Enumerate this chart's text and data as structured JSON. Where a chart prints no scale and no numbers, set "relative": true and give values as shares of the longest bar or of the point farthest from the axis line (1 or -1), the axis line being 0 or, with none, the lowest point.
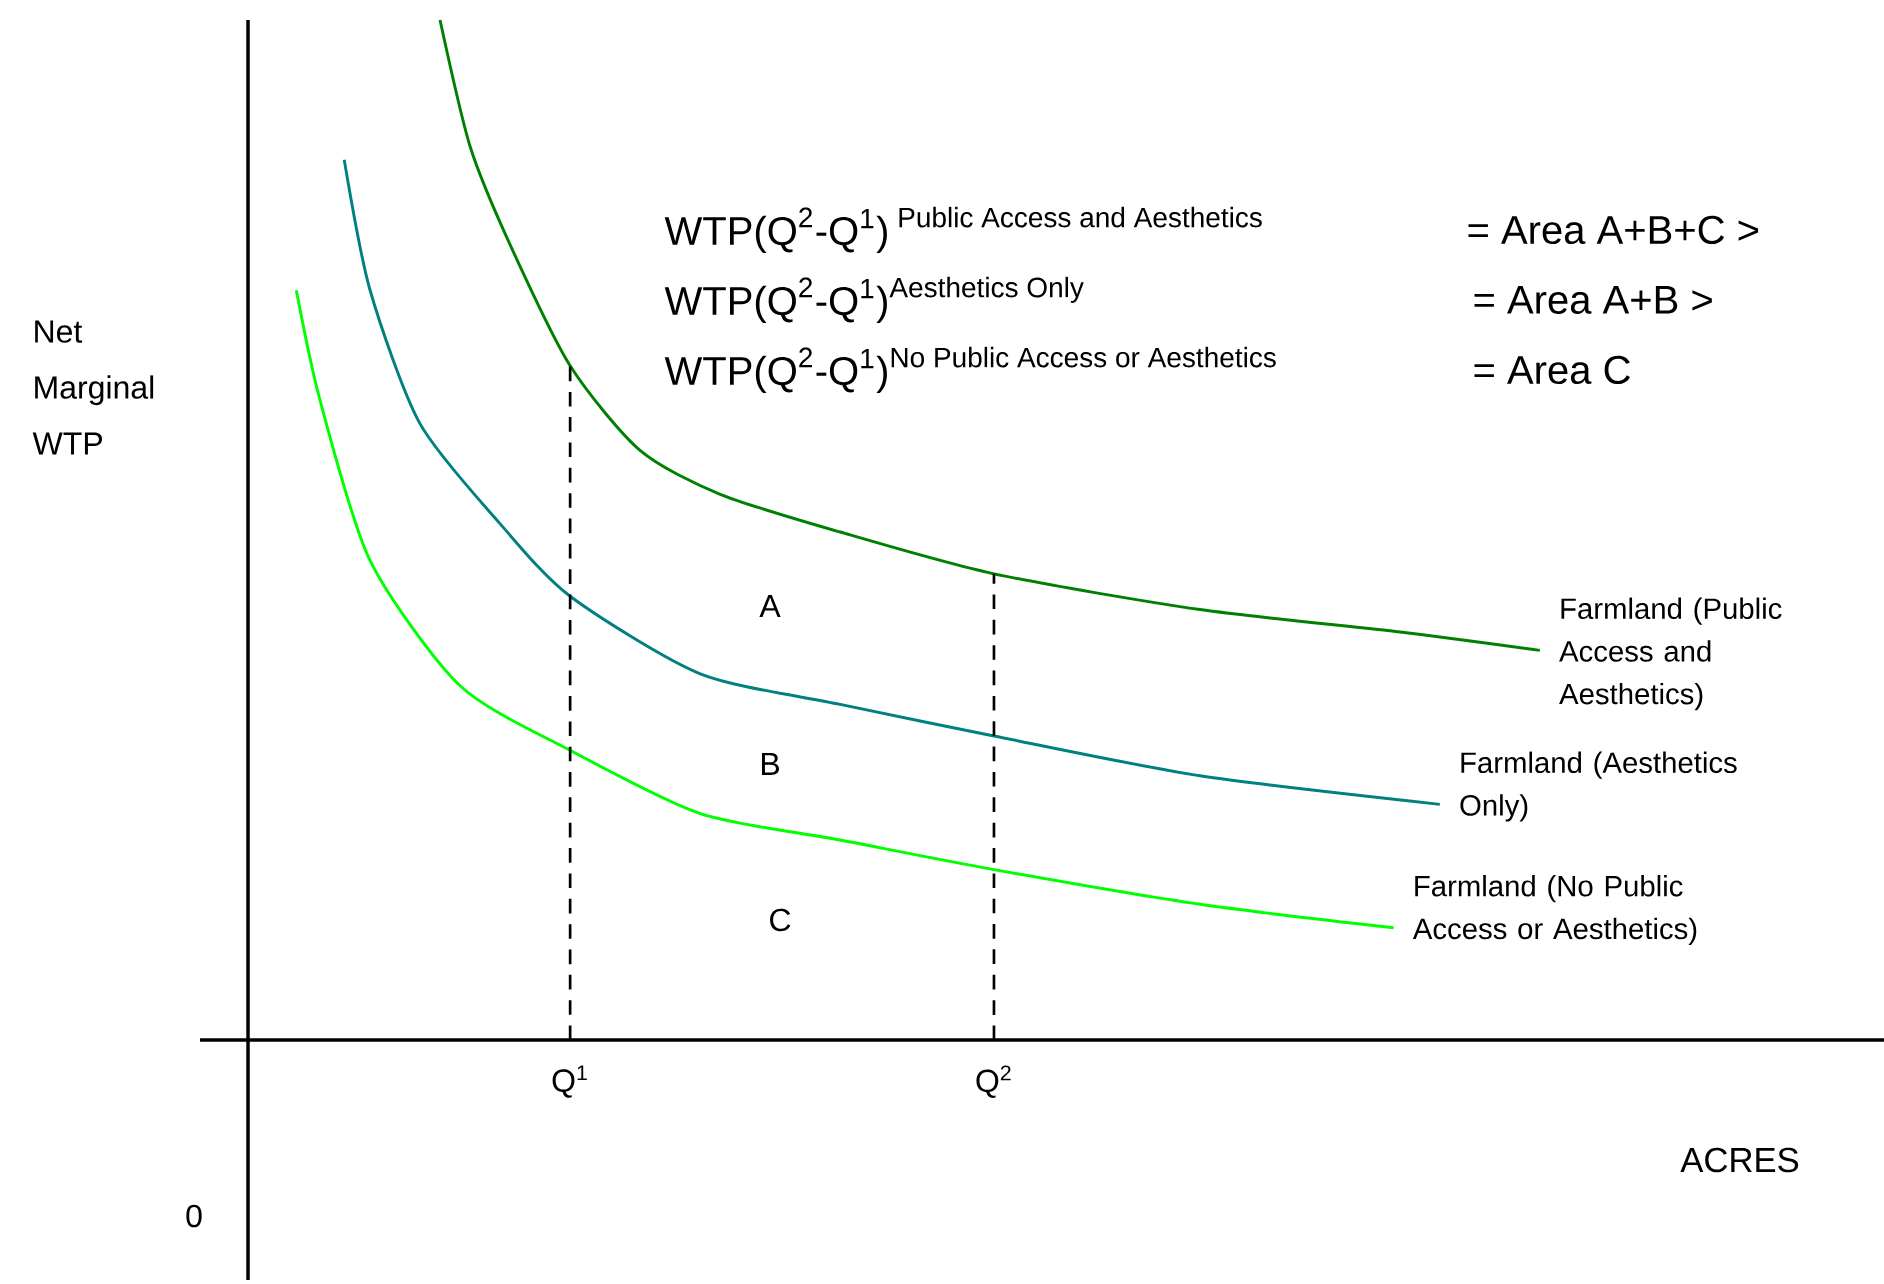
{
  "chart_data": {
    "type": "line",
    "relative": true,
    "ylabel": "Net Marginal WTP",
    "xlabel": "ACRES",
    "xlim": [
      0.24,
      4.1
    ],
    "xticks": [
      {
        "value": 1,
        "label": "Q$^{1}$"
      },
      {
        "value": 2,
        "label": "Q$^{2}$"
      }
    ],
    "series": [
      {
        "name": "Farmland (Public Access and Aesthetics)",
        "color": "#008000",
        "x": [
          0.693,
          0.764,
          0.858,
          1.0,
          1.165,
          1.354,
          1.637,
          2.0,
          2.486,
          2.958,
          3.288
        ],
        "values": [
          1.0,
          0.876,
          0.78,
          0.661,
          0.578,
          0.535,
          0.498,
          0.457,
          0.422,
          0.4,
          0.382
        ]
      },
      {
        "name": "Farmland (Aesthetics Only)",
        "color": "#008080",
        "x": [
          0.467,
          0.528,
          0.646,
          0.835,
          1.0,
          1.307,
          1.637,
          2.0,
          2.486,
          3.052
        ],
        "values": [
          0.863,
          0.735,
          0.604,
          0.506,
          0.435,
          0.359,
          0.329,
          0.298,
          0.259,
          0.231
        ]
      },
      {
        "name": "Farmland (No Public Access or Aesthetics)",
        "color": "#00ff00",
        "x": [
          0.354,
          0.41,
          0.528,
          0.741,
          1.0,
          1.307,
          1.637,
          2.0,
          2.486,
          2.943
        ],
        "values": [
          0.735,
          0.627,
          0.47,
          0.347,
          0.284,
          0.222,
          0.196,
          0.167,
          0.133,
          0.11
        ]
      },
      {
        "color": "#000000",
        "line_style": "dashed",
        "x": [
          1.0,
          1.0
        ],
        "values": [
          0,
          0.661
        ]
      },
      {
        "color": "#000000",
        "line_style": "dashed",
        "x": [
          2.0,
          2.0
        ],
        "values": [
          0,
          0.457
        ]
      }
    ],
    "annotations": [
      "A",
      "B",
      "C",
      "0",
      "\\text{WTP(Q}^{\\text{2}}\\text{-Q}^{\\text{1}}\\text{)}^{\\text{ Public Access and Aesthetics}}",
      "\\text{WTP(Q}^{\\text{2}}\\text{-Q}^{\\text{1}}\\text{)}^{\\text{Aesthetics Only}}",
      "\\text{WTP(Q}^{\\text{2}}\\text{-Q}^{\\text{1}}\\text{)}^{\\text{No Public Access or Aesthetics}}",
      "= Area A+B+C >",
      "= Area A+B >",
      "= Area C"
    ]
  }
}
